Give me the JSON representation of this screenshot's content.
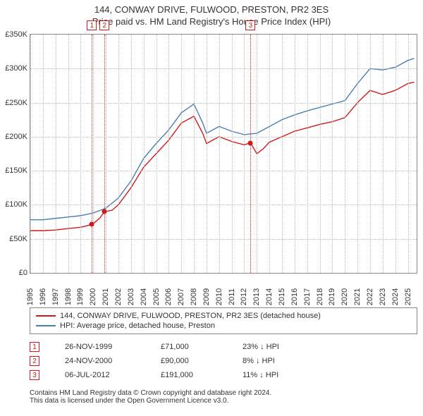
{
  "title_main": "144, CONWAY DRIVE, FULWOOD, PRESTON, PR2 3ES",
  "title_sub": "Price paid vs. HM Land Registry's House Price Index (HPI)",
  "chart": {
    "type": "line",
    "xlim": [
      1995,
      2025.7
    ],
    "ylim": [
      0,
      350000
    ],
    "ytick_step": 50000,
    "yticks": [
      "£0",
      "£50K",
      "£100K",
      "£150K",
      "£200K",
      "£250K",
      "£300K",
      "£350K"
    ],
    "xticks": [
      1995,
      1996,
      1997,
      1998,
      1999,
      2000,
      2001,
      2002,
      2003,
      2004,
      2005,
      2006,
      2007,
      2008,
      2009,
      2010,
      2011,
      2012,
      2013,
      2014,
      2015,
      2016,
      2017,
      2018,
      2019,
      2020,
      2021,
      2022,
      2023,
      2024,
      2025
    ],
    "background_color": "#ffffff",
    "grid_color": "#bbbbbb",
    "line_width": 1.4,
    "fontsize_axis": 11,
    "series": [
      {
        "name": "hpi",
        "label": "HPI: Average price, detached house, Preston",
        "color": "#4a7fb0",
        "data": [
          [
            1995,
            78000
          ],
          [
            1996,
            78000
          ],
          [
            1997,
            80000
          ],
          [
            1998,
            82000
          ],
          [
            1999,
            84000
          ],
          [
            2000,
            88000
          ],
          [
            2001,
            95000
          ],
          [
            2002,
            110000
          ],
          [
            2003,
            135000
          ],
          [
            2004,
            168000
          ],
          [
            2005,
            190000
          ],
          [
            2006,
            210000
          ],
          [
            2007,
            235000
          ],
          [
            2008,
            248000
          ],
          [
            2008.7,
            220000
          ],
          [
            2009,
            205000
          ],
          [
            2010,
            215000
          ],
          [
            2011,
            208000
          ],
          [
            2012,
            203000
          ],
          [
            2013,
            205000
          ],
          [
            2014,
            215000
          ],
          [
            2015,
            225000
          ],
          [
            2016,
            232000
          ],
          [
            2017,
            238000
          ],
          [
            2018,
            243000
          ],
          [
            2019,
            248000
          ],
          [
            2020,
            253000
          ],
          [
            2021,
            278000
          ],
          [
            2022,
            300000
          ],
          [
            2023,
            298000
          ],
          [
            2024,
            302000
          ],
          [
            2025,
            312000
          ],
          [
            2025.5,
            315000
          ]
        ]
      },
      {
        "name": "property",
        "label": "144, CONWAY DRIVE, FULWOOD, PRESTON, PR2 3ES (detached house)",
        "color": "#d11919",
        "data": [
          [
            1995,
            62000
          ],
          [
            1996,
            62000
          ],
          [
            1997,
            63000
          ],
          [
            1998,
            65000
          ],
          [
            1999,
            67000
          ],
          [
            1999.9,
            71000
          ],
          [
            2000.5,
            80000
          ],
          [
            2000.9,
            90000
          ],
          [
            2001.5,
            92000
          ],
          [
            2002,
            100000
          ],
          [
            2003,
            125000
          ],
          [
            2004,
            155000
          ],
          [
            2005,
            175000
          ],
          [
            2006,
            195000
          ],
          [
            2007,
            220000
          ],
          [
            2008,
            230000
          ],
          [
            2008.7,
            205000
          ],
          [
            2009,
            190000
          ],
          [
            2010,
            200000
          ],
          [
            2011,
            193000
          ],
          [
            2012,
            188000
          ],
          [
            2012.5,
            191000
          ],
          [
            2013,
            175000
          ],
          [
            2013.5,
            182000
          ],
          [
            2014,
            192000
          ],
          [
            2015,
            200000
          ],
          [
            2016,
            208000
          ],
          [
            2017,
            213000
          ],
          [
            2018,
            218000
          ],
          [
            2019,
            222000
          ],
          [
            2020,
            228000
          ],
          [
            2021,
            250000
          ],
          [
            2022,
            268000
          ],
          [
            2023,
            262000
          ],
          [
            2024,
            268000
          ],
          [
            2025,
            278000
          ],
          [
            2025.5,
            280000
          ]
        ]
      }
    ],
    "sale_points": [
      {
        "x": 1999.9,
        "y": 71000,
        "color": "#d11919"
      },
      {
        "x": 2000.9,
        "y": 90000,
        "color": "#d11919"
      },
      {
        "x": 2012.5,
        "y": 191000,
        "color": "#d11919"
      }
    ],
    "event_markers": [
      {
        "n": "1",
        "x": 1999.9,
        "color": "#d11919"
      },
      {
        "n": "2",
        "x": 2000.9,
        "color": "#d11919"
      },
      {
        "n": "3",
        "x": 2012.5,
        "color": "#d11919"
      }
    ]
  },
  "legend": {
    "items": [
      {
        "color": "#d11919",
        "label": "144, CONWAY DRIVE, FULWOOD, PRESTON, PR2 3ES (detached house)"
      },
      {
        "color": "#4a7fb0",
        "label": "HPI: Average price, detached house, Preston"
      }
    ]
  },
  "events": [
    {
      "n": "1",
      "color": "#d11919",
      "date": "26-NOV-1999",
      "price": "£71,000",
      "delta": "23% ↓ HPI"
    },
    {
      "n": "2",
      "color": "#d11919",
      "date": "24-NOV-2000",
      "price": "£90,000",
      "delta": "8% ↓ HPI"
    },
    {
      "n": "3",
      "color": "#d11919",
      "date": "06-JUL-2012",
      "price": "£191,000",
      "delta": "11% ↓ HPI"
    }
  ],
  "footer1": "Contains HM Land Registry data © Crown copyright and database right 2024.",
  "footer2": "This data is licensed under the Open Government Licence v3.0."
}
